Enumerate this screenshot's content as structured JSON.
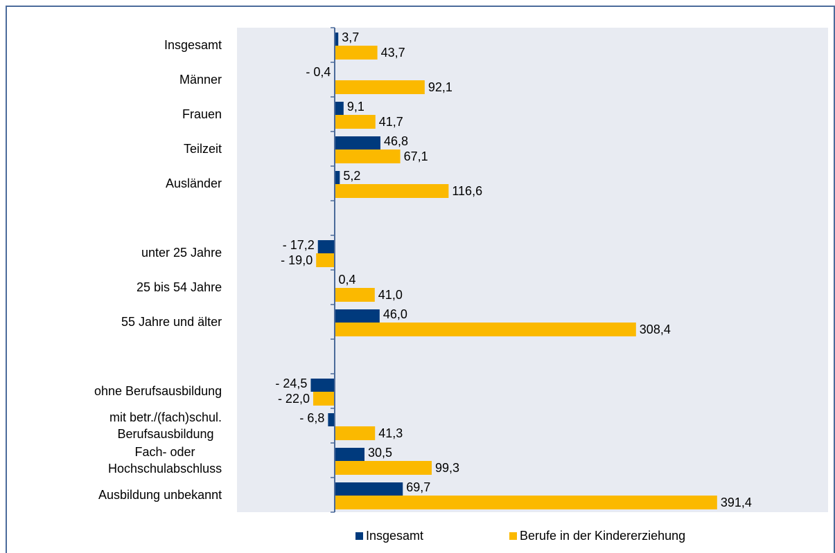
{
  "chart_data": {
    "type": "barh",
    "categories": [
      "Insgesamt",
      "Männer",
      "Frauen",
      "Teilzeit",
      "Ausländer",
      null,
      "unter 25 Jahre",
      "25 bis 54 Jahre",
      "55 Jahre und älter",
      null,
      "ohne Berufsausbildung",
      "mit betr./(fach)schul.\nBerufsausbildung",
      "Fach- oder\nHochschulabschluss",
      "Ausbildung unbekannt"
    ],
    "xlim": [
      -100,
      505
    ],
    "legend": "bottom",
    "series": [
      {
        "name": "Insgesamt",
        "color": "#003a7d",
        "values": [
          3.7,
          -0.4,
          9.1,
          46.8,
          5.2,
          null,
          -17.2,
          0.4,
          46.0,
          null,
          -24.5,
          -6.8,
          30.5,
          69.7
        ],
        "value_labels": [
          "3,7",
          "- 0,4",
          "9,1",
          "46,8",
          "5,2",
          null,
          "- 17,2",
          "0,4",
          "46,0",
          null,
          "- 24,5",
          "- 6,8",
          "30,5",
          "69,7"
        ]
      },
      {
        "name": "Berufe in der Kindererziehung",
        "color": "#fbb900",
        "values": [
          43.7,
          92.1,
          41.7,
          67.1,
          116.6,
          null,
          -19.0,
          41.0,
          308.4,
          null,
          -22.0,
          41.3,
          99.3,
          391.4
        ],
        "value_labels": [
          "43,7",
          "92,1",
          "41,7",
          "67,1",
          "116,6",
          null,
          "- 19,0",
          "41,0",
          "308,4",
          null,
          "- 22,0",
          "41,3",
          "99,3",
          "391,4"
        ]
      }
    ]
  }
}
